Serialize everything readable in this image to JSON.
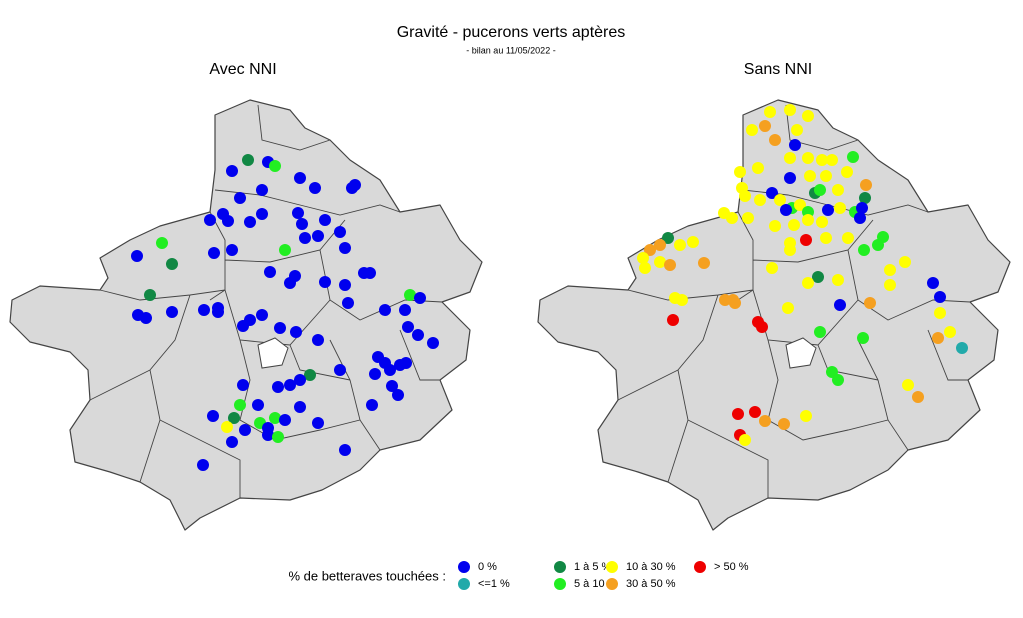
{
  "title": "Gravité - pucerons verts aptères",
  "subtitle": "- bilan au 11/05/2022 -",
  "maps": [
    {
      "title": "Avec NNI"
    },
    {
      "title": "Sans NNI"
    }
  ],
  "legend": {
    "title": "% de betteraves touchées :",
    "items": [
      {
        "label": "0 %",
        "color": "#0000ee"
      },
      {
        "label": "<=1 %",
        "color": "#22aaaa"
      },
      {
        "label": "1 à 5 %",
        "color": "#118844"
      },
      {
        "label": "5 à 10 %",
        "color": "#22ee22"
      },
      {
        "label": "10 à 30 %",
        "color": "#ffff00"
      },
      {
        "label": "30 à 50 %",
        "color": "#f5a020"
      },
      {
        "label": "> 50 %",
        "color": "#ee0000"
      }
    ]
  }
}
